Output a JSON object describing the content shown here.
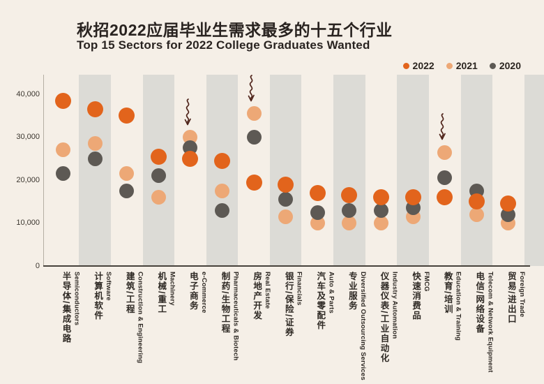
{
  "title": {
    "zh": "秋招2022应届毕业生需求最多的十五个行业",
    "en": "Top 15 Sectors for 2022 College Graduates Wanted"
  },
  "legend": {
    "items": [
      {
        "label": "2022",
        "color": "#e2641c"
      },
      {
        "label": "2021",
        "color": "#eda876"
      },
      {
        "label": "2020",
        "color": "#5d5954"
      }
    ]
  },
  "colors": {
    "background": "#f5efe7",
    "band": "#dcdbd6",
    "text": "#2b2520",
    "annotation": "#4f241b",
    "axis_line": "#47423c"
  },
  "chart_data": {
    "type": "scatter",
    "title": "秋招2022应届毕业生需求最多的十五个行业",
    "subtitle": "Top 15 Sectors for 2022 College Graduates Wanted",
    "ylabel": "",
    "xlabel": "",
    "ylim": [
      0,
      44000
    ],
    "grid": false,
    "legend_position": "top-right",
    "background_stripes": "gray band behind every second category column",
    "yticks": [
      {
        "value": 0,
        "label": "0"
      },
      {
        "value": 10000,
        "label": "10,000"
      },
      {
        "value": 20000,
        "label": "20,000"
      },
      {
        "value": 30000,
        "label": "30,000"
      },
      {
        "value": 40000,
        "label": "40,000"
      }
    ],
    "categories": [
      {
        "en": "Semiconductors",
        "zh": "半导体/集成电路"
      },
      {
        "en": "Software",
        "zh": "计算机软件"
      },
      {
        "en": "Construction & Engineering",
        "zh": "建筑/工程"
      },
      {
        "en": "Machinery",
        "zh": "机械/重工"
      },
      {
        "en": "e-Commerce",
        "zh": "电子商务"
      },
      {
        "en": "Pharmaceuticals & Biotech",
        "zh": "制药/生物工程"
      },
      {
        "en": "Real Estate",
        "zh": "房地产开发"
      },
      {
        "en": "Financials",
        "zh": "银行/保险/证券"
      },
      {
        "en": "Auto & Parts",
        "zh": "汽车及零配件"
      },
      {
        "en": "Diversified Outsourcing Services",
        "zh": "专业服务"
      },
      {
        "en": "Industry Automation",
        "zh": "仪器仪表/工业自动化"
      },
      {
        "en": "FMCG",
        "zh": "快速消费品"
      },
      {
        "en": "Education & Training",
        "zh": "教育/培训"
      },
      {
        "en": "Telecom & Network Equipment",
        "zh": "电信/网络设备"
      },
      {
        "en": "Foreign Trade",
        "zh": "贸易/进出口"
      }
    ],
    "series": [
      {
        "name": "2022",
        "color": "#e2641c",
        "values": [
          38500,
          36500,
          35000,
          25500,
          25000,
          24500,
          19500,
          19000,
          17000,
          16500,
          16000,
          16000,
          16000,
          15000,
          14500
        ]
      },
      {
        "name": "2021",
        "color": "#eda876",
        "values": [
          27000,
          28500,
          21500,
          16000,
          30000,
          17500,
          35500,
          11500,
          10000,
          10000,
          10000,
          11500,
          26500,
          12000,
          10000
        ]
      },
      {
        "name": "2020",
        "color": "#5d5954",
        "values": [
          21500,
          25000,
          17500,
          21000,
          27500,
          13000,
          30000,
          15500,
          12500,
          13000,
          13000,
          13500,
          20500,
          17500,
          12000
        ]
      }
    ],
    "annotations": {
      "symbol": "hand-drawn squiggle arrow pointing down",
      "color": "#4f241b",
      "points_to_series": "2021",
      "on_categories": [
        "e-Commerce",
        "Real Estate",
        "Education & Training"
      ]
    }
  }
}
